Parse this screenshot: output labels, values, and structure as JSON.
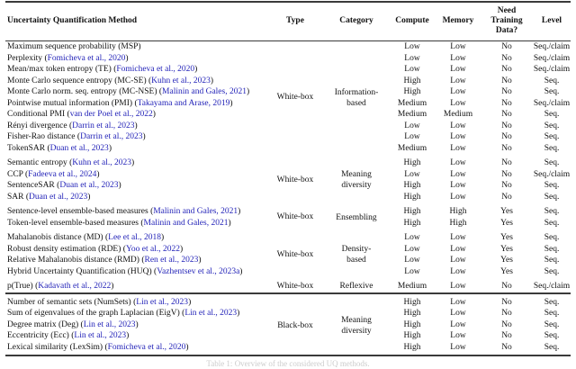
{
  "header": {
    "method": "Uncertainty Quantification Method",
    "type": "Type",
    "category": "Category",
    "compute": "Compute",
    "memory": "Memory",
    "need_training": "Need\nTraining\nData?",
    "level": "Level"
  },
  "punctuation": {
    "cite_open": " (",
    "cite_close": ")"
  },
  "caption": "Table 1: Overview of the considered UQ methods.",
  "colors": {
    "citation_link": "#2323b8",
    "rule": "#3a3a3a",
    "text": "#111111",
    "caption_faint": "#cccccc"
  },
  "groups": [
    {
      "type": "White-box",
      "category": "Information-\nbased",
      "rows": [
        {
          "method": "Maximum sequence probability (MSP)",
          "citation": "",
          "compute": "Low",
          "memory": "Low",
          "need_training": "No",
          "level": "Seq./claim"
        },
        {
          "method": "Perplexity",
          "citation": "Fomicheva et al., 2020",
          "compute": "Low",
          "memory": "Low",
          "need_training": "No",
          "level": "Seq./claim"
        },
        {
          "method": "Mean/max token entropy (TE)",
          "citation": "Fomicheva et al., 2020",
          "compute": "Low",
          "memory": "Low",
          "need_training": "No",
          "level": "Seq./claim"
        },
        {
          "method": "Monte Carlo sequence entropy (MC-SE)",
          "citation": "Kuhn et al., 2023",
          "compute": "High",
          "memory": "Low",
          "need_training": "No",
          "level": "Seq."
        },
        {
          "method": "Monte Carlo norm. seq. entropy (MC-NSE)",
          "citation": "Malinin and Gales, 2021",
          "compute": "High",
          "memory": "Low",
          "need_training": "No",
          "level": "Seq."
        },
        {
          "method": "Pointwise mutual information (PMI)",
          "citation": "Takayama and Arase, 2019",
          "compute": "Medium",
          "memory": "Low",
          "need_training": "No",
          "level": "Seq./claim"
        },
        {
          "method": "Conditional PMI",
          "citation": "van der Poel et al., 2022",
          "compute": "Medium",
          "memory": "Medium",
          "need_training": "No",
          "level": "Seq."
        },
        {
          "method": "Rényi divergence",
          "citation": "Darrin et al., 2023",
          "compute": "Low",
          "memory": "Low",
          "need_training": "No",
          "level": "Seq."
        },
        {
          "method": "Fisher-Rao distance",
          "citation": "Darrin et al., 2023",
          "compute": "Low",
          "memory": "Low",
          "need_training": "No",
          "level": "Seq."
        },
        {
          "method": "TokenSAR",
          "citation": "Duan et al., 2023",
          "compute": "Medium",
          "memory": "Low",
          "need_training": "No",
          "level": "Seq."
        }
      ]
    },
    {
      "type": "White-box",
      "category": "Meaning\ndiversity",
      "rows": [
        {
          "method": "Semantic entropy",
          "citation": "Kuhn et al., 2023",
          "compute": "High",
          "memory": "Low",
          "need_training": "No",
          "level": "Seq."
        },
        {
          "method": "CCP",
          "citation": "Fadeeva et al., 2024",
          "compute": "Low",
          "memory": "Low",
          "need_training": "No",
          "level": "Seq./claim"
        },
        {
          "method": "SentenceSAR",
          "citation": "Duan et al., 2023",
          "compute": "High",
          "memory": "Low",
          "need_training": "No",
          "level": "Seq."
        },
        {
          "method": "SAR",
          "citation": "Duan et al., 2023",
          "compute": "High",
          "memory": "Low",
          "need_training": "No",
          "level": "Seq."
        }
      ]
    },
    {
      "type": "White-box",
      "category": "Ensembling",
      "rows": [
        {
          "method": "Sentence-level ensemble-based measures",
          "citation": "Malinin and Gales, 2021",
          "compute": "High",
          "memory": "High",
          "need_training": "Yes",
          "level": "Seq."
        },
        {
          "method": "Token-level ensemble-based measures",
          "citation": "Malinin and Gales, 2021",
          "compute": "High",
          "memory": "High",
          "need_training": "Yes",
          "level": "Seq."
        }
      ]
    },
    {
      "type": "White-box",
      "category": "Density-\nbased",
      "rows": [
        {
          "method": "Mahalanobis distance (MD)",
          "citation": "Lee et al., 2018",
          "compute": "Low",
          "memory": "Low",
          "need_training": "Yes",
          "level": "Seq."
        },
        {
          "method": "Robust density estimation (RDE)",
          "citation": "Yoo et al., 2022",
          "compute": "Low",
          "memory": "Low",
          "need_training": "Yes",
          "level": "Seq."
        },
        {
          "method": "Relative Mahalanobis distance (RMD)",
          "citation": "Ren et al., 2023",
          "compute": "Low",
          "memory": "Low",
          "need_training": "Yes",
          "level": "Seq."
        },
        {
          "method": "Hybrid Uncertainty Quantification (HUQ)",
          "citation": "Vazhentsev et al., 2023a",
          "compute": "Low",
          "memory": "Low",
          "need_training": "Yes",
          "level": "Seq."
        }
      ]
    },
    {
      "type": "White-box",
      "category": "Reflexive",
      "rows": [
        {
          "method": "p(True)",
          "citation": "Kadavath et al., 2022",
          "compute": "Medium",
          "memory": "Low",
          "need_training": "No",
          "level": "Seq./claim"
        }
      ]
    },
    {
      "type": "Black-box",
      "category": "Meaning\ndiversity",
      "major_rule_before": true,
      "rows": [
        {
          "method": "Number of semantic sets (NumSets)",
          "citation": "Lin et al., 2023",
          "compute": "High",
          "memory": "Low",
          "need_training": "No",
          "level": "Seq."
        },
        {
          "method": "Sum of eigenvalues of the graph Laplacian (EigV)",
          "citation": "Lin et al., 2023",
          "compute": "High",
          "memory": "Low",
          "need_training": "No",
          "level": "Seq."
        },
        {
          "method": "Degree matrix (Deg)",
          "citation": "Lin et al., 2023",
          "compute": "High",
          "memory": "Low",
          "need_training": "No",
          "level": "Seq."
        },
        {
          "method": "Eccentricity (Ecc)",
          "citation": "Lin et al., 2023",
          "compute": "High",
          "memory": "Low",
          "need_training": "No",
          "level": "Seq."
        },
        {
          "method": "Lexical similarity (LexSim)",
          "citation": "Fomicheva et al., 2020",
          "compute": "High",
          "memory": "Low",
          "need_training": "No",
          "level": "Seq."
        }
      ]
    }
  ]
}
